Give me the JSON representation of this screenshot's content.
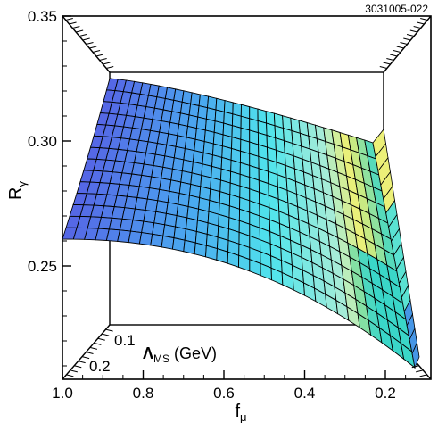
{
  "figure_id": "3031005-022",
  "chart_data": {
    "type": "surface",
    "ylabel": "R",
    "ylabel_sub": "γ",
    "xlabel": "f",
    "xlabel_sub": "μ",
    "depth_label_main": "Λ",
    "depth_label_sub": "MS",
    "depth_label_unit": " (GeV)",
    "y_ticks": [
      "0.35",
      "0.30",
      "0.25"
    ],
    "x_ticks": [
      "1.0",
      "0.8",
      "0.6",
      "0.4",
      "0.2"
    ],
    "depth_ticks": [
      "0.1",
      "0.2"
    ],
    "ylim": [
      0.2,
      0.35
    ],
    "xlim": [
      1.0,
      0.1
    ],
    "colormap": [
      "#4f5fe8",
      "#3aa0ee",
      "#4ee8ee",
      "#c8f0b0",
      "#f4f06a"
    ],
    "grid_lines_f": 32,
    "grid_lines_lambda": 14
  }
}
